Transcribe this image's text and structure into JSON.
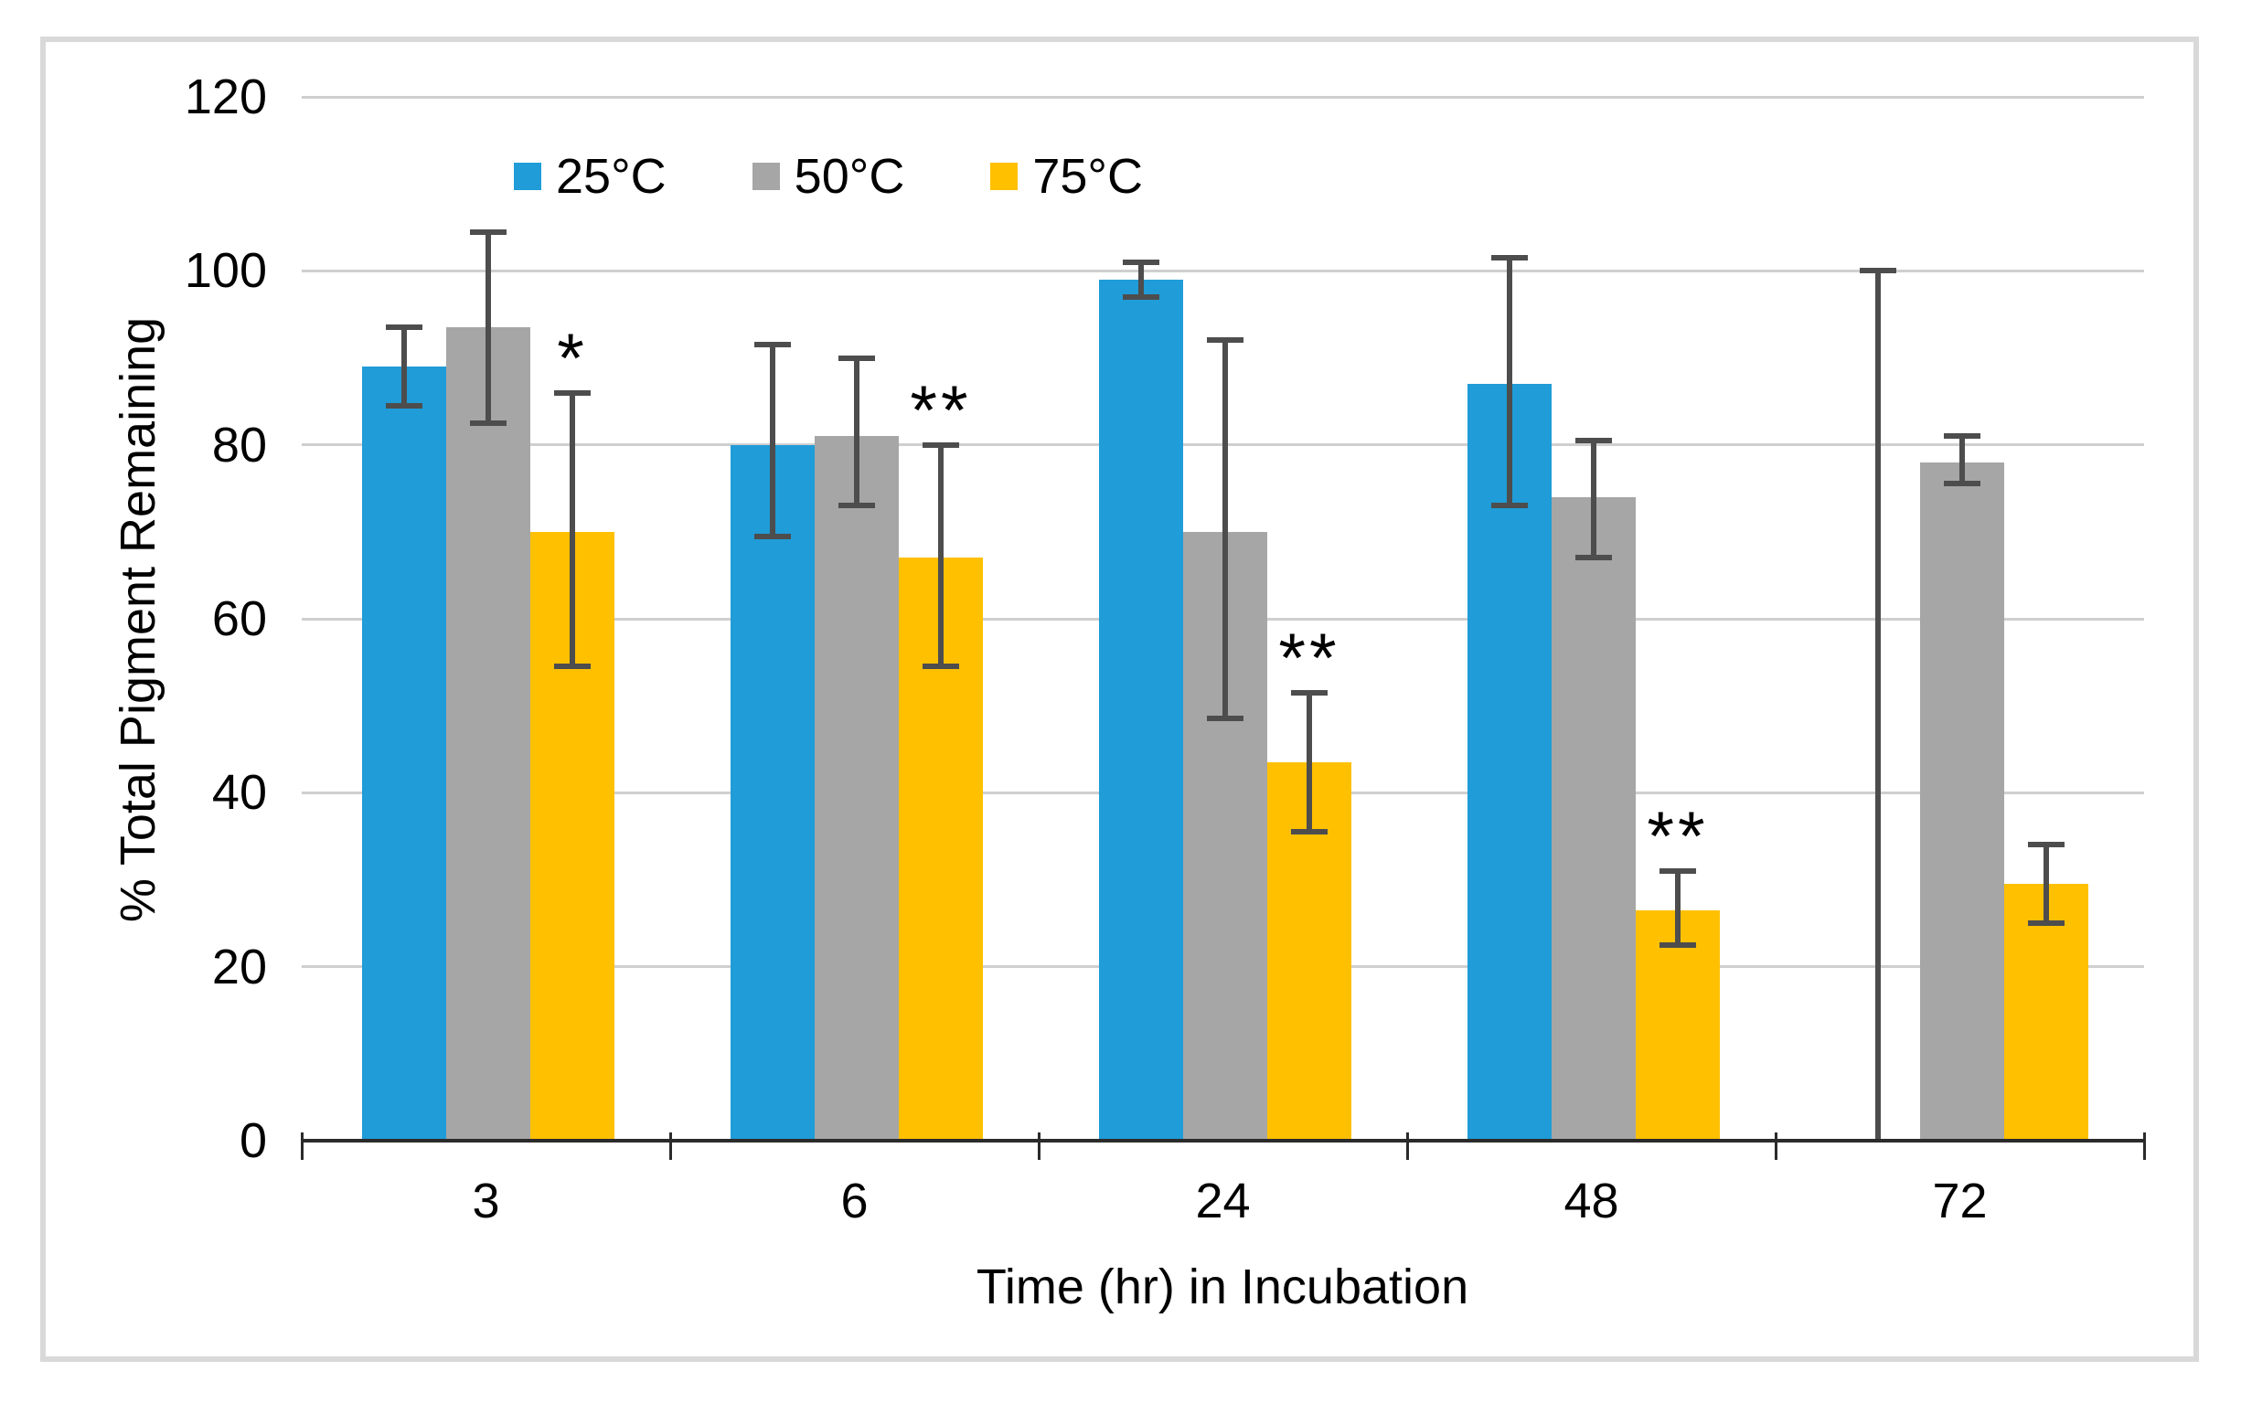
{
  "chart_data": {
    "type": "bar",
    "title": "",
    "xlabel": "Time (hr) in Incubation",
    "ylabel": "% Total Pigment Remaining",
    "categories": [
      "3",
      "6",
      "24",
      "48",
      "72"
    ],
    "ylim": [
      0,
      120
    ],
    "yticks": [
      0,
      20,
      40,
      60,
      80,
      100,
      120
    ],
    "grid": true,
    "legend_position": "top-left-inside",
    "series": [
      {
        "name": "25°C",
        "color": "#209CD8",
        "values": [
          89,
          80,
          99,
          87,
          0
        ],
        "error_low": [
          84.5,
          69.5,
          97,
          73,
          0
        ],
        "error_high": [
          93.5,
          91.5,
          101,
          101.5,
          100
        ]
      },
      {
        "name": "50°C",
        "color": "#A6A6A6",
        "values": [
          93.5,
          81,
          70,
          74,
          78
        ],
        "error_low": [
          82.5,
          73,
          48.5,
          67,
          75.5
        ],
        "error_high": [
          104.5,
          90,
          92,
          80.5,
          81
        ]
      },
      {
        "name": "75°C",
        "color": "#FFC000",
        "values": [
          70,
          67,
          43.5,
          26.5,
          29.5
        ],
        "error_low": [
          54.5,
          54.5,
          35.5,
          22.5,
          25
        ],
        "error_high": [
          86,
          80,
          51.5,
          31,
          34
        ]
      }
    ],
    "significance_markers": {
      "marked_series": "75°C",
      "labels": [
        "*",
        "**",
        "**",
        "**",
        ""
      ]
    },
    "colors": {
      "error_bar": "#4D4D4D",
      "axis": "#2B2B2B",
      "gridline": "#CFCFCF",
      "frame_border": "#D9D9D9",
      "text": "#000000"
    }
  }
}
